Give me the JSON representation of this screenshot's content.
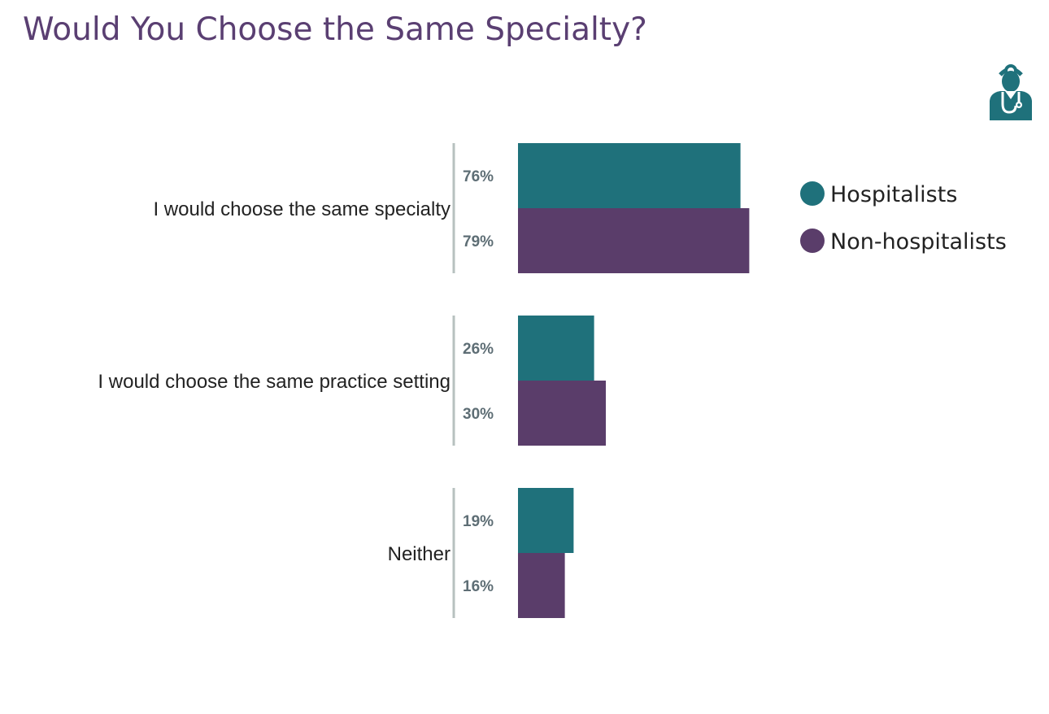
{
  "title": "Would You Choose the Same Specialty?",
  "icon": "doctor-stethoscope-icon",
  "colors": {
    "title": "#5a3f72",
    "hospitalists": "#1f717b",
    "non_hospitalists": "#5a3d6a",
    "axis": "#b7c1bf"
  },
  "chart_data": {
    "type": "bar",
    "orientation": "horizontal",
    "title": "Would You Choose the Same Specialty?",
    "categories": [
      "I would choose the same specialty",
      "I would choose the same practice setting",
      "Neither"
    ],
    "series": [
      {
        "name": "Hospitalists",
        "color": "#1f717b",
        "values": [
          76,
          26,
          19
        ],
        "labels": [
          "76%",
          "26%",
          "19%"
        ]
      },
      {
        "name": "Non-hospitalists",
        "color": "#5a3d6a",
        "values": [
          79,
          30,
          16
        ],
        "labels": [
          "79%",
          "30%",
          "16%"
        ]
      }
    ],
    "unit": "%",
    "xlim": [
      0,
      100
    ],
    "grid": false,
    "legend_position": "right"
  }
}
